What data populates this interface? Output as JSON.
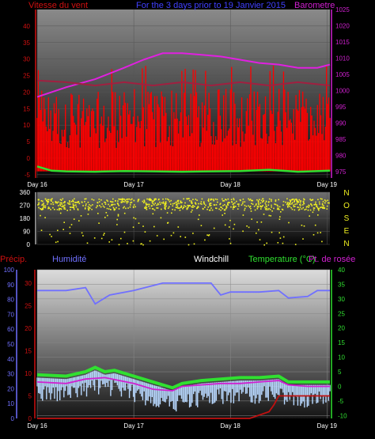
{
  "chart_data": [
    {
      "type": "line",
      "panel": "wind-barometer",
      "title": "For the 3 days prior to  19 Janvier 2015",
      "left_axis_label": "Vitesse du vent",
      "right_axis_label": "Barometre",
      "left_ticks": [
        40,
        35,
        30,
        25,
        20,
        15,
        10,
        5,
        0,
        -5
      ],
      "ylim_left": [
        -6,
        45
      ],
      "right_ticks": [
        1025,
        1020,
        1015,
        1010,
        1005,
        1000,
        995,
        990,
        985,
        980,
        975
      ],
      "ylim_right": [
        973,
        1025
      ],
      "x_range": [
        0,
        3.03
      ],
      "x_tick_labels": [
        "Day 16",
        "Day 17",
        "Day 18",
        "Day 19"
      ],
      "x_ticks": [
        0,
        1,
        2,
        3
      ],
      "grid": true,
      "series": [
        {
          "role": "barometer",
          "axis": "right",
          "color": "#e020e0",
          "x": [
            0,
            0.3,
            0.6,
            0.9,
            1.1,
            1.3,
            1.5,
            1.7,
            1.9,
            2.1,
            2.3,
            2.5,
            2.7,
            2.9,
            3.03
          ],
          "values": [
            998,
            1001,
            1003.5,
            1007,
            1009.5,
            1011.5,
            1011.5,
            1011,
            1010.5,
            1009.5,
            1008.5,
            1008,
            1007,
            1007,
            1008
          ]
        },
        {
          "role": "wind-avg",
          "axis": "left",
          "color": "#30e030",
          "x": [
            0,
            0.15,
            0.3,
            0.6,
            0.9,
            1.2,
            1.5,
            1.8,
            2.1,
            2.4,
            2.7,
            3.03
          ],
          "values": [
            -2.5,
            -3.8,
            -4,
            -4.1,
            -3.9,
            -4,
            -4.1,
            -4,
            -3.9,
            -3.5,
            -4.1,
            -3.8
          ]
        },
        {
          "role": "trend",
          "axis": "left",
          "color": "#a02040",
          "x": [
            0,
            0.3,
            0.6,
            0.9,
            1.2,
            1.5,
            1.8,
            2.1,
            2.4,
            2.7,
            3.03
          ],
          "values": [
            23.5,
            23,
            22,
            23,
            22,
            23,
            22,
            23,
            22,
            23,
            22
          ]
        }
      ],
      "gust_peaks": {
        "axis": "left",
        "color": "#ff0000",
        "range": [
          -4,
          28
        ],
        "typical_peak": 21
      }
    },
    {
      "type": "scatter",
      "panel": "wind-direction",
      "y_ticks": [
        360,
        270,
        180,
        90,
        0
      ],
      "ylim": [
        0,
        360
      ],
      "compass_labels": [
        "N",
        "O",
        "S",
        "E",
        "N"
      ],
      "points_color": "#f0f020",
      "dominant_direction_range": [
        240,
        320
      ]
    },
    {
      "type": "line",
      "panel": "temperature-humidity-precip",
      "labels": {
        "precip": "Précip.",
        "humidity": "Humidité",
        "windchill": "Windchill",
        "temperature": "Temperature (°C)",
        "dewpoint": "Pt. de rosée"
      },
      "precip_ticks": [
        30,
        25,
        20,
        15,
        10,
        5,
        0
      ],
      "ylim_precip": [
        0,
        33
      ],
      "humidity_ticks": [
        100,
        90,
        80,
        70,
        60,
        50,
        40,
        30,
        20,
        10,
        0
      ],
      "ylim_humidity": [
        0,
        100
      ],
      "temp_ticks": [
        40,
        35,
        30,
        25,
        20,
        15,
        10,
        5,
        0,
        -5,
        -10
      ],
      "ylim_temp": [
        -11,
        40
      ],
      "x_range": [
        0,
        3.03
      ],
      "x_tick_labels": [
        "Day 16",
        "Day 17",
        "Day 18",
        "Day 19"
      ],
      "x_ticks": [
        0,
        1,
        2,
        3
      ],
      "grid": true,
      "series": [
        {
          "role": "humidity",
          "axis": "humidity",
          "color": "#7070ff",
          "x": [
            0,
            0.3,
            0.5,
            0.6,
            0.75,
            1.0,
            1.3,
            1.6,
            1.8,
            1.9,
            2.0,
            2.1,
            2.3,
            2.5,
            2.6,
            2.8,
            2.9,
            3.03
          ],
          "values": [
            86,
            86,
            88,
            77,
            83,
            86,
            91,
            91,
            91,
            83,
            85,
            85,
            85,
            86,
            81,
            82,
            86,
            86
          ]
        },
        {
          "role": "temperature",
          "axis": "temp",
          "color": "#30e030",
          "x": [
            0,
            0.3,
            0.5,
            0.6,
            0.7,
            0.8,
            1.0,
            1.2,
            1.4,
            1.5,
            1.7,
            1.9,
            2.1,
            2.3,
            2.5,
            2.6,
            2.8,
            3.03
          ],
          "values": [
            4,
            3.5,
            5,
            6.5,
            5,
            5.5,
            3.5,
            1.5,
            -0.5,
            1,
            2,
            2.5,
            3,
            3,
            3.5,
            1.5,
            1.5,
            1.5
          ]
        },
        {
          "role": "dewpoint",
          "axis": "temp",
          "color": "#d020d0",
          "x": [
            0,
            0.3,
            0.5,
            0.7,
            1.0,
            1.2,
            1.4,
            1.5,
            1.7,
            1.9,
            2.1,
            2.3,
            2.5,
            2.6,
            2.8,
            3.03
          ],
          "values": [
            1.5,
            1,
            2.5,
            3,
            1,
            -1,
            -1.5,
            0,
            0.5,
            1,
            1,
            1.5,
            2,
            0.5,
            0,
            0
          ]
        },
        {
          "role": "precipitation",
          "axis": "precip",
          "color": "#c01010",
          "x": [
            0,
            1.6,
            1.85,
            2.2,
            2.4,
            2.45,
            2.5,
            3.0,
            3.03
          ],
          "values": [
            0,
            0,
            0,
            0,
            1.5,
            3,
            5,
            5,
            5
          ]
        }
      ]
    }
  ]
}
